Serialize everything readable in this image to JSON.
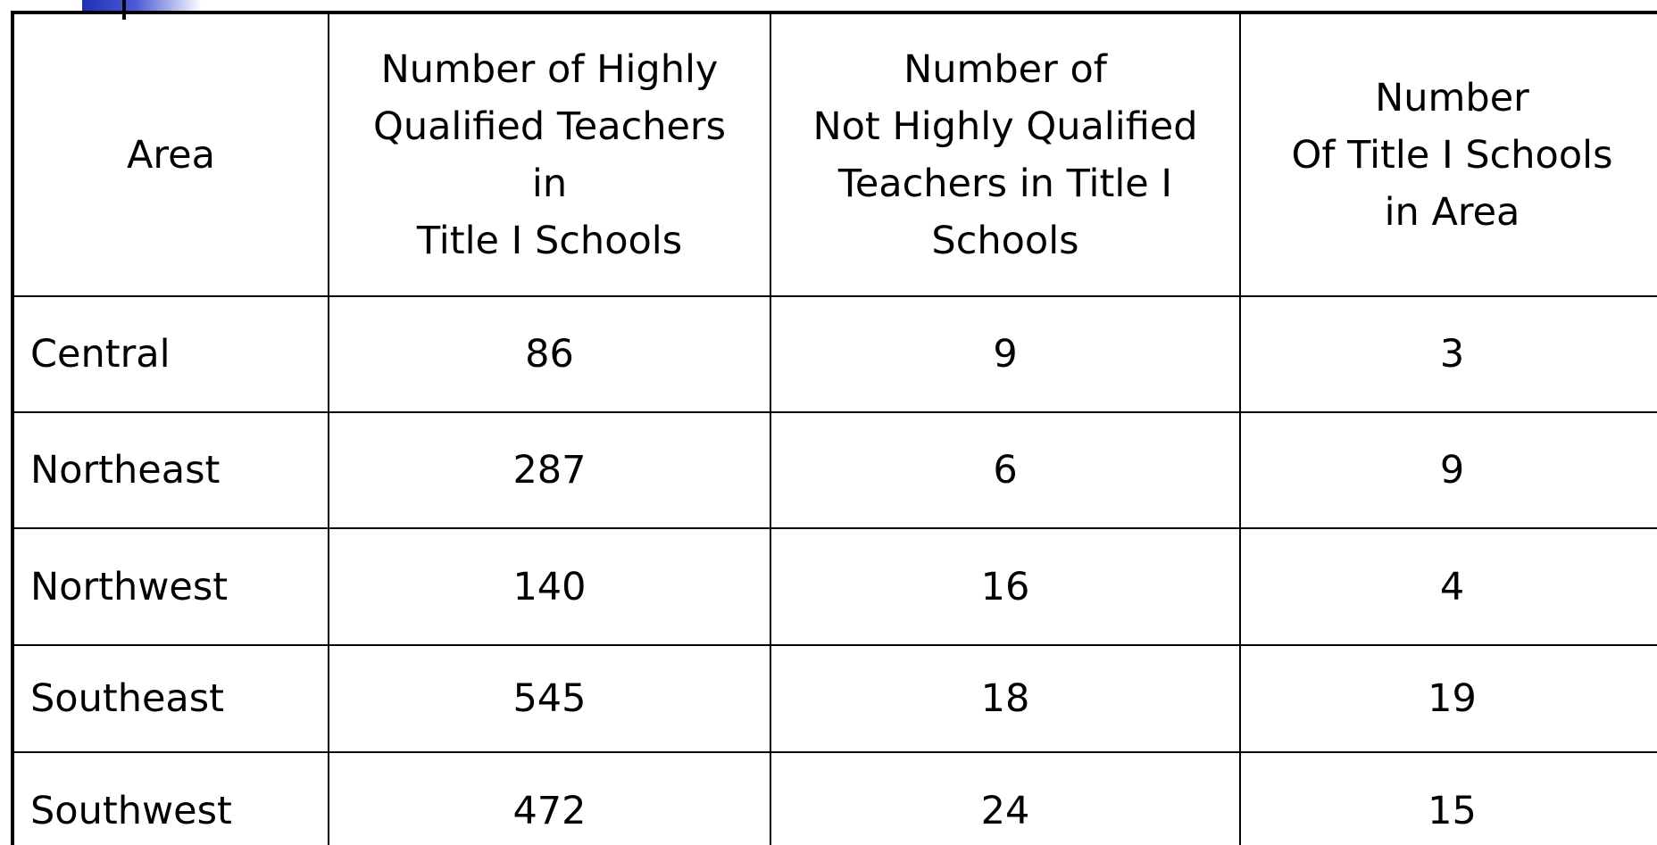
{
  "table": {
    "header": [
      [
        "Area"
      ],
      [
        "Number of Highly",
        "Qualified Teachers",
        "in",
        "Title I Schools"
      ],
      [
        "Number of",
        "Not Highly Qualified",
        "Teachers in Title I",
        "Schools"
      ],
      [
        "Number",
        "Of Title I Schools",
        "in Area"
      ]
    ],
    "rows": [
      [
        "Central",
        86,
        9,
        3
      ],
      [
        "Northeast",
        287,
        6,
        9
      ],
      [
        "Northwest",
        140,
        16,
        4
      ],
      [
        "Southeast",
        545,
        18,
        19
      ],
      [
        "Southwest",
        472,
        24,
        15
      ]
    ]
  }
}
